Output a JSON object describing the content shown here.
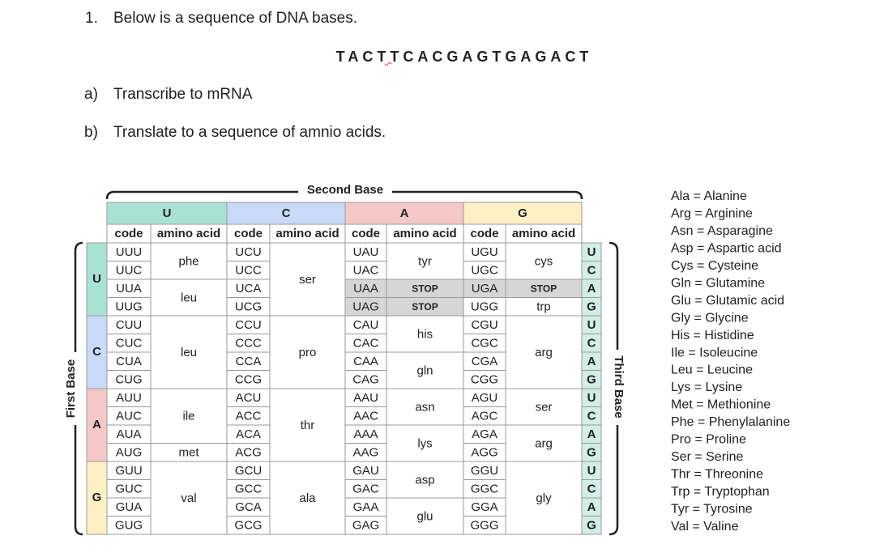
{
  "question": {
    "number": "1.",
    "text": "Below is a sequence of DNA bases.",
    "sequence": "TACTTCACGAGTGAGACT",
    "parts": [
      {
        "label": "a)",
        "text": "Transcribe to mRNA"
      },
      {
        "label": "b)",
        "text": "Translate to a sequence of amnio acids."
      }
    ]
  },
  "table": {
    "second_base_label": "Second Base",
    "first_base_label": "First Base",
    "third_base_label": "Third Base",
    "second_bases": [
      "U",
      "C",
      "A",
      "G"
    ],
    "base_colors": [
      "#a9e1d5",
      "#c9daf8",
      "#f5c8c8",
      "#fdf0c4"
    ],
    "third_base_color": "#d3ede7",
    "shade_color": "#d6d6d6",
    "subheaders": [
      "code",
      "amino acid",
      "code",
      "amino acid",
      "code",
      "amino acid",
      "code",
      "amino acid"
    ],
    "first_bases": [
      "U",
      "C",
      "A",
      "G"
    ],
    "third_bases": [
      "U",
      "C",
      "A",
      "G",
      "U",
      "C",
      "A",
      "G",
      "U",
      "C",
      "A",
      "G",
      "U",
      "C",
      "A",
      "G"
    ],
    "codons": [
      [
        "UUU",
        "UCU",
        "UAU",
        "UGU"
      ],
      [
        "UUC",
        "UCC",
        "UAC",
        "UGC"
      ],
      [
        "UUA",
        "UCA",
        "UAA",
        "UGA"
      ],
      [
        "UUG",
        "UCG",
        "UAG",
        "UGG"
      ],
      [
        "CUU",
        "CCU",
        "CAU",
        "CGU"
      ],
      [
        "CUC",
        "CCC",
        "CAC",
        "CGC"
      ],
      [
        "CUA",
        "CCA",
        "CAA",
        "CGA"
      ],
      [
        "CUG",
        "CCG",
        "CAG",
        "CGG"
      ],
      [
        "AUU",
        "ACU",
        "AAU",
        "AGU"
      ],
      [
        "AUC",
        "ACC",
        "AAC",
        "AGC"
      ],
      [
        "AUA",
        "ACA",
        "AAA",
        "AGA"
      ],
      [
        "AUG",
        "ACG",
        "AAG",
        "AGG"
      ],
      [
        "GUU",
        "GCU",
        "GAU",
        "GGU"
      ],
      [
        "GUC",
        "GCC",
        "GAC",
        "GGC"
      ],
      [
        "GUA",
        "GCA",
        "GAA",
        "GGA"
      ],
      [
        "GUG",
        "GCG",
        "GAG",
        "GGG"
      ]
    ],
    "amino_acids": [
      [
        "phe",
        null,
        "leu",
        null,
        "leu",
        null,
        null,
        null,
        "ile",
        null,
        null,
        "met",
        "val",
        null,
        null,
        null
      ],
      [
        "ser",
        null,
        null,
        null,
        "pro",
        null,
        null,
        null,
        "thr",
        null,
        null,
        null,
        "ala",
        null,
        null,
        null
      ],
      [
        "tyr",
        null,
        "STOP",
        "STOP",
        "his",
        null,
        "gln",
        null,
        "asn",
        null,
        "lys",
        null,
        "asp",
        null,
        "glu",
        null
      ],
      [
        "cys",
        null,
        "STOP",
        "trp",
        "arg",
        null,
        null,
        null,
        "ser",
        null,
        "arg",
        null,
        "gly",
        null,
        null,
        null
      ]
    ],
    "shaded_cells": [
      [
        2,
        2
      ],
      [
        3,
        2
      ],
      [
        2,
        3
      ]
    ]
  },
  "legend": [
    "Ala = Alanine",
    "Arg = Arginine",
    "Asn = Asparagine",
    "Asp = Aspartic acid",
    "Cys = Cysteine",
    "Gln = Glutamine",
    "Glu = Glutamic acid",
    "Gly = Glycine",
    "His = Histidine",
    "Ile = Isoleucine",
    "Leu = Leucine",
    "Lys = Lysine",
    "Met = Methionine",
    "Phe = Phenylalanine",
    "Pro = Proline",
    "Ser = Serine",
    "Thr = Threonine",
    "Trp = Tryptophan",
    "Tyr = Tyrosine",
    "Val = Valine"
  ]
}
